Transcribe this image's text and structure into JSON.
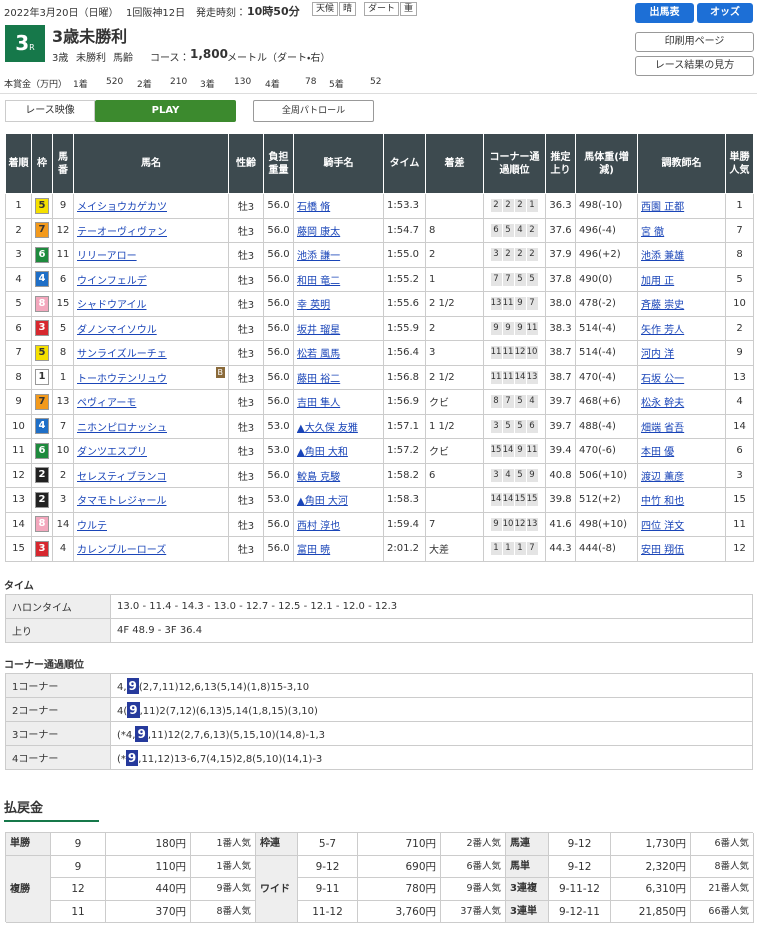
{
  "header": {
    "date": "2022年3月20日（日曜）",
    "meeting": "1回阪神12日",
    "start_label": "発走時刻：",
    "start_time": "10時50分",
    "weather_label": "天候",
    "weather": "晴",
    "track_label": "ダート",
    "track_condition": "重",
    "race_number": "3",
    "race_suffix": "R",
    "race_name": "3歳未勝利",
    "age": "3歳",
    "class": "未勝利",
    "weight_rule": "馬齢",
    "course_label": "コース：",
    "distance": "1,800",
    "distance_unit": "メートル（ダート・右）"
  },
  "buttons": {
    "entries": "出馬表",
    "odds": "オッズ",
    "print": "印刷用ページ",
    "guide": "レース結果の見方"
  },
  "prize": {
    "label": "本賞金（万円）",
    "items": [
      {
        "place": "1着",
        "amount": "520"
      },
      {
        "place": "2着",
        "amount": "210"
      },
      {
        "place": "3着",
        "amount": "130"
      },
      {
        "place": "4着",
        "amount": "78"
      },
      {
        "place": "5着",
        "amount": "52"
      }
    ]
  },
  "video": {
    "label": "レース映像",
    "play": "PLAY",
    "patrol": "全周パトロール"
  },
  "table": {
    "headers": [
      "着順",
      "枠",
      "馬番",
      "馬名",
      "性齢",
      "負担重量",
      "騎手名",
      "タイム",
      "着差",
      "コーナー通過順位",
      "推定上り",
      "馬体重(増減)",
      "調教師名",
      "単勝人気"
    ],
    "blinker": "B",
    "rows": [
      {
        "place": "1",
        "frame": "5",
        "number": "9",
        "horse": "メイショウカゲカツ",
        "sex_age": "牡3",
        "weight": "56.0",
        "jockey": "石橋 脩",
        "time": "1:53.3",
        "margin": null,
        "corners": [
          "2",
          "2",
          "2",
          "1"
        ],
        "last3f": "36.3",
        "body_weight": "498(-10)",
        "trainer": "西園 正都",
        "popularity": "1"
      },
      {
        "place": "2",
        "frame": "7",
        "number": "12",
        "horse": "テーオーヴィヴァン",
        "sex_age": "牡3",
        "weight": "56.0",
        "jockey": "藤岡 康太",
        "time": "1:54.7",
        "margin": "8",
        "corners": [
          "6",
          "5",
          "4",
          "2"
        ],
        "last3f": "37.6",
        "body_weight": "496(-4)",
        "trainer": "宮 徹",
        "popularity": "7"
      },
      {
        "place": "3",
        "frame": "6",
        "number": "11",
        "horse": "リリーアロー",
        "sex_age": "牡3",
        "weight": "56.0",
        "jockey": "池添 謙一",
        "time": "1:55.0",
        "margin": "2",
        "corners": [
          "3",
          "2",
          "2",
          "2"
        ],
        "last3f": "37.9",
        "body_weight": "496(+2)",
        "trainer": "池添 兼雄",
        "popularity": "8"
      },
      {
        "place": "4",
        "frame": "4",
        "number": "6",
        "horse": "ウインフェルデ",
        "sex_age": "牡3",
        "weight": "56.0",
        "jockey": "和田 竜二",
        "time": "1:55.2",
        "margin": "1",
        "corners": [
          "7",
          "7",
          "5",
          "5"
        ],
        "last3f": "37.8",
        "body_weight": "490(0)",
        "trainer": "加用 正",
        "popularity": "5"
      },
      {
        "place": "5",
        "frame": "8",
        "number": "15",
        "horse": "シャドウアイル",
        "sex_age": "牡3",
        "weight": "56.0",
        "jockey": "幸 英明",
        "time": "1:55.6",
        "margin": "2 1/2",
        "corners": [
          "13",
          "11",
          "9",
          "7"
        ],
        "last3f": "38.0",
        "body_weight": "478(-2)",
        "trainer": "斉藤 崇史",
        "popularity": "10"
      },
      {
        "place": "6",
        "frame": "3",
        "number": "5",
        "horse": "ダノンマイソウル",
        "sex_age": "牡3",
        "weight": "56.0",
        "jockey": "坂井 瑠星",
        "time": "1:55.9",
        "margin": "2",
        "corners": [
          "9",
          "9",
          "9",
          "11"
        ],
        "last3f": "38.3",
        "body_weight": "514(-4)",
        "trainer": "矢作 芳人",
        "popularity": "2"
      },
      {
        "place": "7",
        "frame": "5",
        "number": "8",
        "horse": "サンライズルーチェ",
        "sex_age": "牡3",
        "weight": "56.0",
        "jockey": "松若 風馬",
        "time": "1:56.4",
        "margin": "3",
        "corners": [
          "11",
          "11",
          "12",
          "10"
        ],
        "last3f": "38.7",
        "body_weight": "514(-4)",
        "trainer": "河内 洋",
        "popularity": "9"
      },
      {
        "place": "8",
        "frame": "1",
        "number": "1",
        "horse": "トーホウテンリュウ",
        "blinker": true,
        "sex_age": "牡3",
        "weight": "56.0",
        "jockey": "藤田 裕二",
        "time": "1:56.8",
        "margin": "2 1/2",
        "corners": [
          "11",
          "11",
          "14",
          "13"
        ],
        "last3f": "38.7",
        "body_weight": "470(-4)",
        "trainer": "石坂 公一",
        "popularity": "13"
      },
      {
        "place": "9",
        "frame": "7",
        "number": "13",
        "horse": "ペヴィアーモ",
        "sex_age": "牡3",
        "weight": "56.0",
        "jockey": "吉田 隼人",
        "time": "1:56.9",
        "margin": "クビ",
        "corners": [
          "8",
          "7",
          "5",
          "4"
        ],
        "last3f": "39.7",
        "body_weight": "468(+6)",
        "trainer": "松永 幹夫",
        "popularity": "4"
      },
      {
        "place": "10",
        "frame": "4",
        "number": "7",
        "horse": "ニホンピロナッシュ",
        "sex_age": "牡3",
        "weight": "53.0",
        "jockey": "▲大久保 友雅",
        "time": "1:57.1",
        "margin": "1 1/2",
        "corners": [
          "3",
          "5",
          "5",
          "6"
        ],
        "last3f": "39.7",
        "body_weight": "488(-4)",
        "trainer": "畑端 省吾",
        "popularity": "14"
      },
      {
        "place": "11",
        "frame": "6",
        "number": "10",
        "horse": "ダンツエスプリ",
        "sex_age": "牡3",
        "weight": "53.0",
        "jockey": "▲角田 大和",
        "time": "1:57.2",
        "margin": "クビ",
        "corners": [
          "15",
          "14",
          "9",
          "11"
        ],
        "last3f": "39.4",
        "body_weight": "470(-6)",
        "trainer": "本田 優",
        "popularity": "6"
      },
      {
        "place": "12",
        "frame": "2",
        "number": "2",
        "horse": "セレスティブランコ",
        "sex_age": "牡3",
        "weight": "56.0",
        "jockey": "鮫島 克駿",
        "time": "1:58.2",
        "margin": "6",
        "corners": [
          "3",
          "4",
          "5",
          "9"
        ],
        "last3f": "40.8",
        "body_weight": "506(+10)",
        "trainer": "渡辺 薫彦",
        "popularity": "3"
      },
      {
        "place": "13",
        "frame": "2",
        "number": "3",
        "horse": "タマモトレジャール",
        "sex_age": "牡3",
        "weight": "53.0",
        "jockey": "▲角田 大河",
        "time": "1:58.3",
        "margin": null,
        "corners": [
          "14",
          "14",
          "15",
          "15"
        ],
        "last3f": "39.8",
        "body_weight": "512(+2)",
        "trainer": "中竹 和也",
        "popularity": "15"
      },
      {
        "place": "14",
        "frame": "8",
        "number": "14",
        "horse": "ウルテ",
        "sex_age": "牡3",
        "weight": "56.0",
        "jockey": "西村 淳也",
        "time": "1:59.4",
        "margin": "7",
        "corners": [
          "9",
          "10",
          "12",
          "13"
        ],
        "last3f": "41.6",
        "body_weight": "498(+10)",
        "trainer": "四位 洋文",
        "popularity": "11"
      },
      {
        "place": "15",
        "frame": "3",
        "number": "4",
        "horse": "カレンブルーローズ",
        "sex_age": "牡3",
        "weight": "56.0",
        "jockey": "富田 暁",
        "time": "2:01.2",
        "margin": "大差",
        "corners": [
          "1",
          "1",
          "1",
          "7"
        ],
        "last3f": "44.3",
        "body_weight": "444(-8)",
        "trainer": "安田 翔伍",
        "popularity": "12"
      }
    ]
  },
  "times": {
    "title": "タイム",
    "rows": [
      {
        "label": "ハロンタイム",
        "value": "13.0 - 11.4 - 14.3 - 13.0 - 12.7 - 12.5 - 12.1 - 12.0 - 12.3"
      },
      {
        "label": "上り",
        "value": "4F 48.9 - 3F 36.4"
      }
    ]
  },
  "corners": {
    "title": "コーナー通過順位",
    "rows": [
      {
        "label": "1コーナー",
        "pre": "4,",
        "winner": "9",
        "post": "(2,7,11)12,6,13(5,14)(1,8)15-3,10"
      },
      {
        "label": "2コーナー",
        "pre": "4(",
        "winner": "9",
        "post": ",11)2(7,12)(6,13)5,14(1,8,15)(3,10)"
      },
      {
        "label": "3コーナー",
        "pre": "(*4,",
        "winner": "9",
        "post": ",11)12(2,7,6,13)(5,15,10)(14,8)-1,3"
      },
      {
        "label": "4コーナー",
        "pre": "(*",
        "winner": "9",
        "post": ",11,12)13-6,7(4,15)2,8(5,10)(14,1)-3"
      }
    ]
  },
  "payout": {
    "title": "払戻金",
    "columns": [
      [
        {
          "label": "単勝",
          "rows": [
            {
              "combo": "9",
              "amount": "180円",
              "popularity": "1番人気"
            }
          ]
        },
        {
          "label": "複勝",
          "rows": [
            {
              "combo": "9",
              "amount": "110円",
              "popularity": "1番人気"
            },
            {
              "combo": "12",
              "amount": "440円",
              "popularity": "9番人気"
            },
            {
              "combo": "11",
              "amount": "370円",
              "popularity": "8番人気"
            }
          ]
        }
      ],
      [
        {
          "label": "枠連",
          "rows": [
            {
              "combo": "5-7",
              "amount": "710円",
              "popularity": "2番人気"
            }
          ]
        },
        {
          "label": "ワイド",
          "rows": [
            {
              "combo": "9-12",
              "amount": "690円",
              "popularity": "6番人気"
            },
            {
              "combo": "9-11",
              "amount": "780円",
              "popularity": "9番人気"
            },
            {
              "combo": "11-12",
              "amount": "3,760円",
              "popularity": "37番人気"
            }
          ]
        }
      ],
      [
        {
          "label": "馬連",
          "rows": [
            {
              "combo": "9-12",
              "amount": "1,730円",
              "popularity": "6番人気"
            }
          ]
        },
        {
          "label": "馬単",
          "rows": [
            {
              "combo": "9-12",
              "amount": "2,320円",
              "popularity": "8番人気"
            }
          ]
        },
        {
          "label": "3連複",
          "rows": [
            {
              "combo": "9-11-12",
              "amount": "6,310円",
              "popularity": "21番人気"
            }
          ]
        },
        {
          "label": "3連単",
          "rows": [
            {
              "combo": "9-12-11",
              "amount": "21,850円",
              "popularity": "66番人気"
            }
          ]
        }
      ]
    ]
  }
}
